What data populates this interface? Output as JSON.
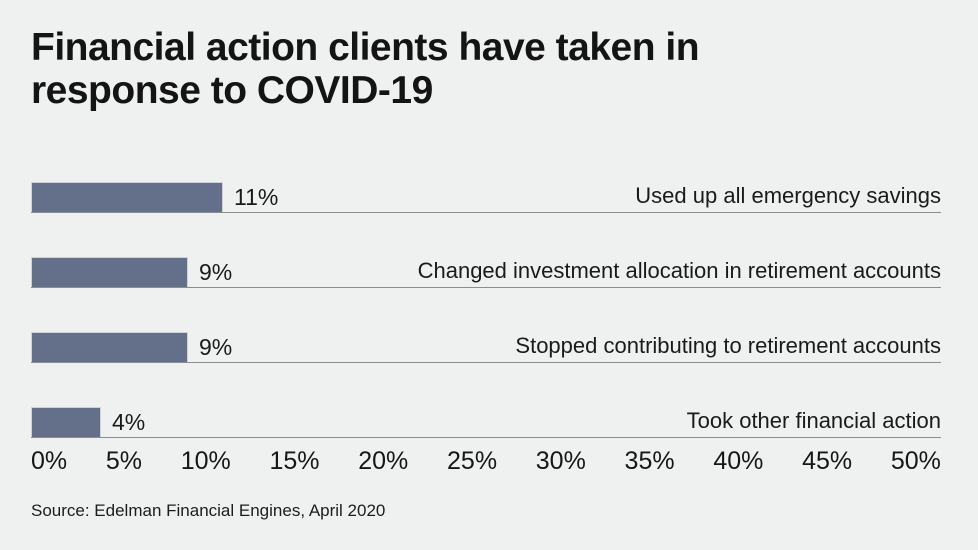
{
  "header": {
    "title_line1": "Financial action clients have taken in",
    "title_line2": "response to COVID-19"
  },
  "chart_data": {
    "type": "bar",
    "orientation": "horizontal",
    "title": "Financial action clients have taken in response to COVID-19",
    "categories": [
      "Used up all emergency savings",
      "Changed investment allocation in retirement accounts",
      "Stopped contributing to retirement accounts",
      "Took other financial action"
    ],
    "values": [
      11,
      9,
      9,
      4
    ],
    "value_labels": [
      "11%",
      "9%",
      "9%",
      "4%"
    ],
    "xlabel": "",
    "ylabel": "",
    "xlim": [
      0,
      50
    ],
    "x_ticks": [
      "0%",
      "5%",
      "10%",
      "15%",
      "20%",
      "25%",
      "30%",
      "35%",
      "40%",
      "45%",
      "50%"
    ],
    "grid": false,
    "legend": "none"
  },
  "footer": {
    "source": "Source: Edelman Financial Engines, April 2020"
  },
  "colors": {
    "background": "#eff1f0",
    "bar": "#64708a",
    "bar_border": "#cdd3da",
    "row_line": "#8b8e8d",
    "text": "#1a1a1a"
  }
}
